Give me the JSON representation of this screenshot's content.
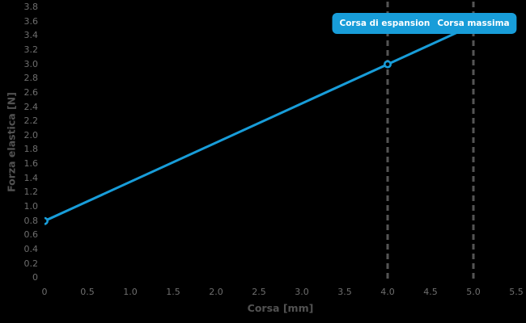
{
  "chart_data": {
    "type": "line",
    "title": "",
    "xlabel": "Corsa [mm]",
    "ylabel": "Forza elastica [N]",
    "xlim": [
      0,
      5.5
    ],
    "ylim": [
      0,
      3.8
    ],
    "grid": false,
    "legend": false,
    "background": "#000000",
    "x_ticks": [
      {
        "v": 0,
        "label": "0"
      },
      {
        "v": 0.5,
        "label": "0.5"
      },
      {
        "v": 1.0,
        "label": "1.0"
      },
      {
        "v": 1.5,
        "label": "1.5"
      },
      {
        "v": 2.0,
        "label": "2.0"
      },
      {
        "v": 2.5,
        "label": "2.5"
      },
      {
        "v": 3.0,
        "label": "3.0"
      },
      {
        "v": 3.5,
        "label": "3.5"
      },
      {
        "v": 4.0,
        "label": "4.0"
      },
      {
        "v": 4.5,
        "label": "4.5"
      },
      {
        "v": 5.0,
        "label": "5.0"
      },
      {
        "v": 5.5,
        "label": "5.5"
      }
    ],
    "y_ticks": [
      {
        "v": 0,
        "label": "0"
      },
      {
        "v": 0.2,
        "label": "0.2"
      },
      {
        "v": 0.4,
        "label": "0.4"
      },
      {
        "v": 0.6,
        "label": "0.6"
      },
      {
        "v": 0.8,
        "label": "0.8"
      },
      {
        "v": 1.0,
        "label": "1.0"
      },
      {
        "v": 1.2,
        "label": "1.2"
      },
      {
        "v": 1.4,
        "label": "1.4"
      },
      {
        "v": 1.6,
        "label": "1.6"
      },
      {
        "v": 1.8,
        "label": "1.8"
      },
      {
        "v": 2.0,
        "label": "2.0"
      },
      {
        "v": 2.2,
        "label": "2.2"
      },
      {
        "v": 2.4,
        "label": "2.4"
      },
      {
        "v": 2.6,
        "label": "2.6"
      },
      {
        "v": 2.8,
        "label": "2.8"
      },
      {
        "v": 3.0,
        "label": "3.0"
      },
      {
        "v": 3.2,
        "label": "3.2"
      },
      {
        "v": 3.4,
        "label": "3.4"
      },
      {
        "v": 3.6,
        "label": "3.6"
      },
      {
        "v": 3.8,
        "label": "3.8"
      }
    ],
    "series": [
      {
        "name": "forza-elastica",
        "color": "#189dd9",
        "line_width": 3,
        "points": [
          {
            "x": 0,
            "y": 0.8
          },
          {
            "x": 4.0,
            "y": 3.0
          },
          {
            "x": 5.0,
            "y": 3.55
          }
        ],
        "markers": [
          {
            "x": 0,
            "y": 0.8
          },
          {
            "x": 4.0,
            "y": 3.0
          }
        ],
        "marker_style": "open-circle"
      }
    ],
    "vlines": [
      {
        "x": 4.0,
        "style": "dashed",
        "color": "#555555",
        "width": 3
      },
      {
        "x": 5.0,
        "style": "dashed",
        "color": "#555555",
        "width": 3
      }
    ],
    "annotations": [
      {
        "x": 4.0,
        "text": "Corsa di espansione",
        "bg": "#189dd9",
        "fg": "#ffffff"
      },
      {
        "x": 5.0,
        "text": "Corsa massima",
        "bg": "#189dd9",
        "fg": "#ffffff"
      }
    ],
    "colors": {
      "tick_label": "#6e6e6e",
      "axis_title": "#525252"
    }
  }
}
